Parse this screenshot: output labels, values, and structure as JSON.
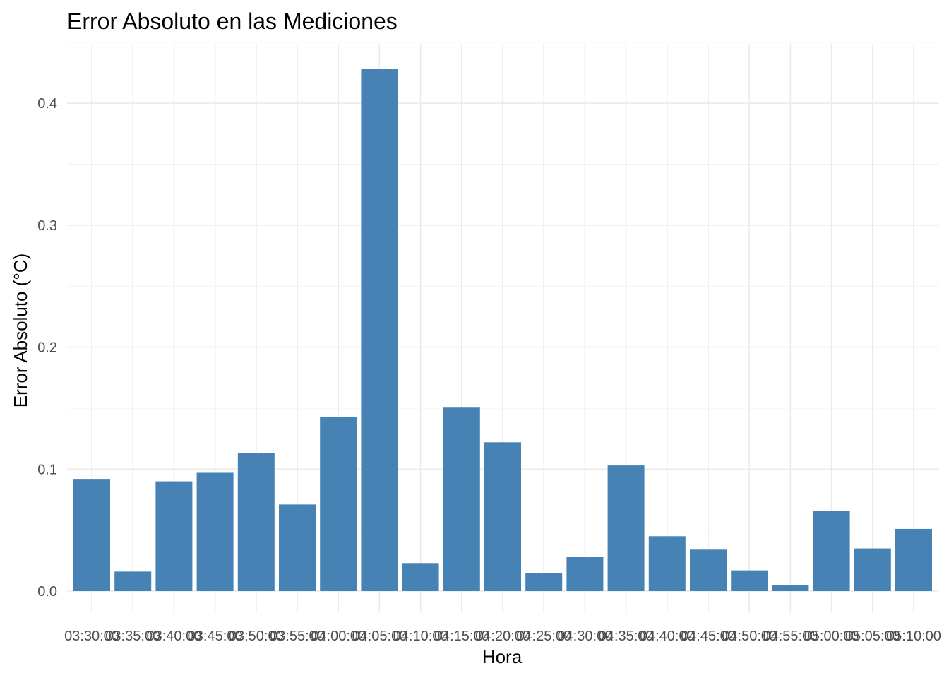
{
  "chart_data": {
    "type": "bar",
    "title": "Error Absoluto en las Mediciones",
    "xlabel": "Hora",
    "ylabel": "Error Absoluto (°C)",
    "categories": [
      "03:30:00",
      "03:35:00",
      "03:40:00",
      "03:45:00",
      "03:50:00",
      "03:55:00",
      "04:00:00",
      "04:05:00",
      "04:10:00",
      "04:15:00",
      "04:20:00",
      "04:25:00",
      "04:30:00",
      "04:35:00",
      "04:40:00",
      "04:45:00",
      "04:50:00",
      "04:55:00",
      "05:00:00",
      "05:05:00",
      "05:10:00"
    ],
    "values": [
      0.092,
      0.016,
      0.09,
      0.097,
      0.113,
      0.071,
      0.143,
      0.428,
      0.023,
      0.151,
      0.122,
      0.015,
      0.028,
      0.103,
      0.045,
      0.034,
      0.017,
      0.005,
      0.066,
      0.035,
      0.051
    ],
    "ylim": [
      0,
      0.45
    ],
    "yticks": [
      0.0,
      0.1,
      0.2,
      0.3,
      0.4
    ],
    "ytick_labels": [
      "0.0",
      "0.1",
      "0.2",
      "0.3",
      "0.4"
    ],
    "grid": true,
    "legend": "none",
    "bar_color": "#4682B4"
  }
}
